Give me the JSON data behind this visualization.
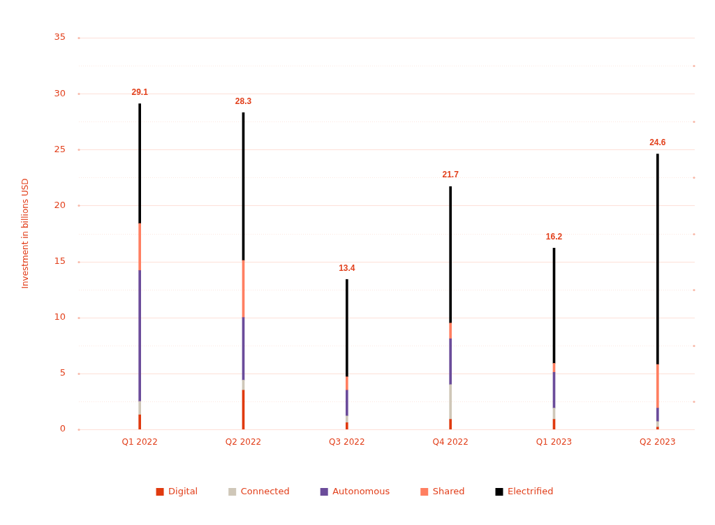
{
  "chart_data": {
    "type": "bar",
    "stacked": true,
    "ylabel": "Investment in billions USD",
    "categories": [
      "Q1 2022",
      "Q2 2022",
      "Q3 2022",
      "Q4 2022",
      "Q1 2023",
      "Q2 2023"
    ],
    "series": [
      {
        "name": "Digital",
        "color": "#e03a0f",
        "values": [
          1.3,
          3.5,
          0.6,
          0.9,
          0.9,
          0.2
        ]
      },
      {
        "name": "Connected",
        "color": "#cfc7b8",
        "values": [
          1.2,
          0.9,
          0.6,
          3.1,
          1.0,
          0.5
        ]
      },
      {
        "name": "Autonomous",
        "color": "#6b4c9a",
        "values": [
          11.7,
          5.6,
          2.3,
          4.1,
          3.2,
          1.2
        ]
      },
      {
        "name": "Shared",
        "color": "#ff7f61",
        "values": [
          4.2,
          5.1,
          1.2,
          1.4,
          0.8,
          3.9
        ]
      },
      {
        "name": "Electrified",
        "color": "#000000",
        "values": [
          10.7,
          13.2,
          8.7,
          12.2,
          10.3,
          18.8
        ]
      }
    ],
    "totals": [
      "29.1",
      "28.3",
      "13.4",
      "21.7",
      "16.2",
      "24.6"
    ],
    "ylim": [
      0,
      35
    ],
    "yticks": [
      0,
      {
        "value": 2.5,
        "label": null
      },
      5,
      {
        "value": 7.5,
        "label": null
      },
      10,
      {
        "value": 12.5,
        "label": null
      },
      15,
      {
        "value": 17.5,
        "label": null
      },
      20,
      {
        "value": 22.5,
        "label": null
      },
      25,
      {
        "value": 27.5,
        "label": null
      },
      30,
      {
        "value": 32.5,
        "label": null
      },
      35
    ],
    "grid": "y",
    "legend": "bottom"
  }
}
